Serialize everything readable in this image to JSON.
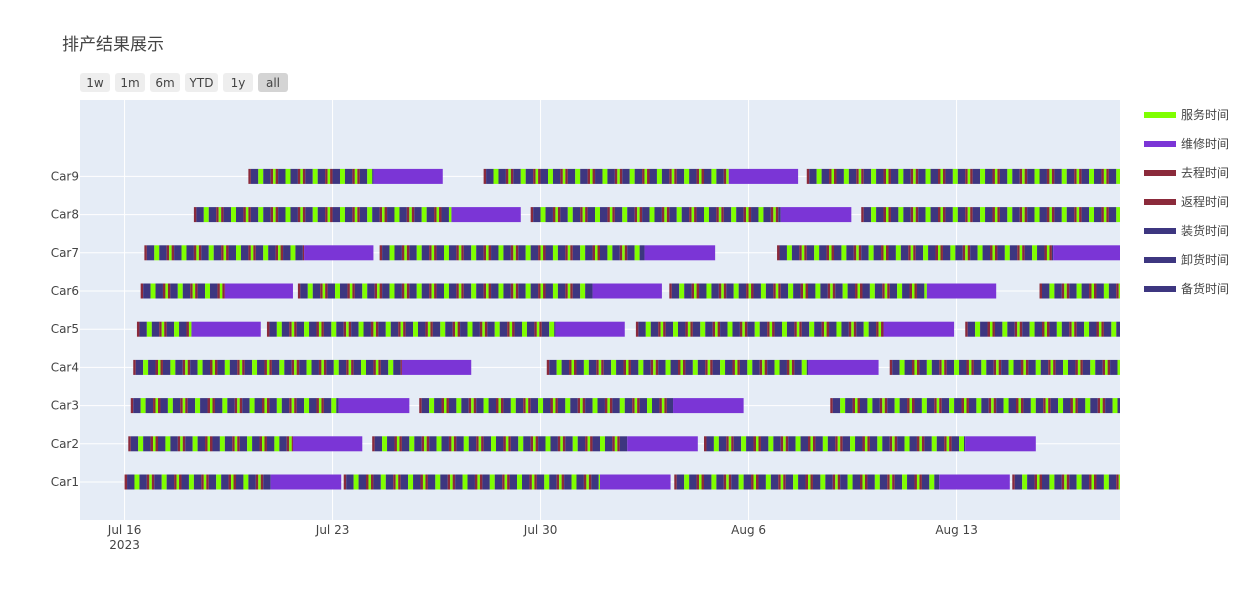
{
  "chart_data": {
    "type": "gantt",
    "title": "排产结果展示",
    "range_selector": {
      "buttons": [
        "1w",
        "1m",
        "6m",
        "YTD",
        "1y",
        "all"
      ],
      "active": "all"
    },
    "x_axis": {
      "type": "date",
      "range": [
        "2023-07-14T12:00",
        "2023-08-18T12:00"
      ],
      "ticks": [
        {
          "date": "2023-07-16",
          "label": "Jul 16",
          "sublabel": "2023"
        },
        {
          "date": "2023-07-23",
          "label": "Jul 23",
          "sublabel": ""
        },
        {
          "date": "2023-07-30",
          "label": "Jul 30",
          "sublabel": ""
        },
        {
          "date": "2023-08-06",
          "label": "Aug 6",
          "sublabel": ""
        },
        {
          "date": "2023-08-13",
          "label": "Aug 13",
          "sublabel": ""
        }
      ]
    },
    "y_axis": {
      "categories": [
        "Car1",
        "Car2",
        "Car3",
        "Car4",
        "Car5",
        "Car6",
        "Car7",
        "Car8",
        "Car9"
      ]
    },
    "legend": {
      "placement": "right",
      "items": [
        {
          "name": "服务时间",
          "color": "#7fff00"
        },
        {
          "name": "维修时间",
          "color": "#7b35d6"
        },
        {
          "name": "去程时间",
          "color": "#8b2a3b"
        },
        {
          "name": "返程时间",
          "color": "#8b2a3b"
        },
        {
          "name": "装货时间",
          "color": "#3d3680"
        },
        {
          "name": "卸货时间",
          "color": "#3d3680"
        },
        {
          "name": "备货时间",
          "color": "#3d3680"
        }
      ]
    },
    "grid": true,
    "cycle_pattern": [
      {
        "type": "去程时间",
        "hours": 2
      },
      {
        "type": "装货时间",
        "hours": 6
      },
      {
        "type": "服务时间",
        "hours": 4
      },
      {
        "type": "卸货时间",
        "hours": 6
      },
      {
        "type": "返程时间",
        "hours": 2
      },
      {
        "type": "服务时间",
        "hours": 2
      }
    ],
    "rows": [
      {
        "car": "Car1",
        "segments": [
          {
            "type": "work",
            "start": "2023-07-16T00:00",
            "end": "2023-07-20T22:00"
          },
          {
            "type": "维修时间",
            "start": "2023-07-20T22:00",
            "end": "2023-07-23T07:00"
          },
          {
            "type": "work",
            "start": "2023-07-23T09:00",
            "end": "2023-08-01T00:00"
          },
          {
            "type": "维修时间",
            "start": "2023-08-01T00:00",
            "end": "2023-08-03T09:00"
          },
          {
            "type": "work",
            "start": "2023-08-03T12:00",
            "end": "2023-08-12T10:00"
          },
          {
            "type": "维修时间",
            "start": "2023-08-12T10:00",
            "end": "2023-08-14T19:00"
          },
          {
            "type": "work",
            "start": "2023-08-14T21:00",
            "end": "2023-08-18T12:00"
          }
        ]
      },
      {
        "car": "Car2",
        "segments": [
          {
            "type": "work",
            "start": "2023-07-16T03:00",
            "end": "2023-07-21T16:00"
          },
          {
            "type": "维修时间",
            "start": "2023-07-21T16:00",
            "end": "2023-07-24T00:00"
          },
          {
            "type": "work",
            "start": "2023-07-24T08:00",
            "end": "2023-08-01T22:00"
          },
          {
            "type": "维修时间",
            "start": "2023-08-01T22:00",
            "end": "2023-08-04T07:00"
          },
          {
            "type": "work",
            "start": "2023-08-04T12:00",
            "end": "2023-08-13T07:00"
          },
          {
            "type": "维修时间",
            "start": "2023-08-13T07:00",
            "end": "2023-08-15T16:00"
          }
        ]
      },
      {
        "car": "Car3",
        "segments": [
          {
            "type": "work",
            "start": "2023-07-16T05:00",
            "end": "2023-07-23T05:00"
          },
          {
            "type": "维修时间",
            "start": "2023-07-23T05:00",
            "end": "2023-07-25T14:00"
          },
          {
            "type": "work",
            "start": "2023-07-25T22:00",
            "end": "2023-08-03T11:00"
          },
          {
            "type": "维修时间",
            "start": "2023-08-03T11:00",
            "end": "2023-08-05T20:00"
          },
          {
            "type": "work",
            "start": "2023-08-08T18:00",
            "end": "2023-08-18T12:00"
          }
        ]
      },
      {
        "car": "Car4",
        "segments": [
          {
            "type": "work",
            "start": "2023-07-16T07:00",
            "end": "2023-07-25T08:00"
          },
          {
            "type": "维修时间",
            "start": "2023-07-25T08:00",
            "end": "2023-07-27T16:00"
          },
          {
            "type": "work",
            "start": "2023-07-30T05:00",
            "end": "2023-08-08T00:00"
          },
          {
            "type": "维修时间",
            "start": "2023-08-08T00:00",
            "end": "2023-08-10T09:00"
          },
          {
            "type": "work",
            "start": "2023-08-10T18:00",
            "end": "2023-08-18T12:00"
          }
        ]
      },
      {
        "car": "Car5",
        "segments": [
          {
            "type": "work",
            "start": "2023-07-16T10:00",
            "end": "2023-07-18T06:00"
          },
          {
            "type": "维修时间",
            "start": "2023-07-18T06:00",
            "end": "2023-07-20T14:00"
          },
          {
            "type": "work",
            "start": "2023-07-20T19:00",
            "end": "2023-07-30T12:00"
          },
          {
            "type": "维修时间",
            "start": "2023-07-30T12:00",
            "end": "2023-08-01T20:00"
          },
          {
            "type": "work",
            "start": "2023-08-02T05:00",
            "end": "2023-08-10T13:00"
          },
          {
            "type": "维修时间",
            "start": "2023-08-10T13:00",
            "end": "2023-08-12T22:00"
          },
          {
            "type": "work",
            "start": "2023-08-13T07:00",
            "end": "2023-08-18T12:00"
          }
        ]
      },
      {
        "car": "Car6",
        "segments": [
          {
            "type": "work",
            "start": "2023-07-16T13:00",
            "end": "2023-07-19T09:00"
          },
          {
            "type": "维修时间",
            "start": "2023-07-19T09:00",
            "end": "2023-07-21T16:00"
          },
          {
            "type": "work",
            "start": "2023-07-21T20:00",
            "end": "2023-07-31T18:00"
          },
          {
            "type": "维修时间",
            "start": "2023-07-31T18:00",
            "end": "2023-08-03T02:00"
          },
          {
            "type": "work",
            "start": "2023-08-03T08:00",
            "end": "2023-08-12T00:00"
          },
          {
            "type": "维修时间",
            "start": "2023-08-12T00:00",
            "end": "2023-08-14T08:00"
          },
          {
            "type": "work",
            "start": "2023-08-15T19:00",
            "end": "2023-08-18T12:00"
          }
        ]
      },
      {
        "car": "Car7",
        "segments": [
          {
            "type": "work",
            "start": "2023-07-16T16:00",
            "end": "2023-07-22T01:00"
          },
          {
            "type": "维修时间",
            "start": "2023-07-22T01:00",
            "end": "2023-07-24T09:00"
          },
          {
            "type": "work",
            "start": "2023-07-24T14:00",
            "end": "2023-08-02T12:00"
          },
          {
            "type": "维修时间",
            "start": "2023-08-02T12:00",
            "end": "2023-08-04T21:00"
          },
          {
            "type": "work",
            "start": "2023-08-06T23:00",
            "end": "2023-08-16T06:00"
          },
          {
            "type": "维修时间",
            "start": "2023-08-16T06:00",
            "end": "2023-08-18T12:00"
          }
        ]
      },
      {
        "car": "Car8",
        "segments": [
          {
            "type": "work",
            "start": "2023-07-18T08:00",
            "end": "2023-07-27T00:00"
          },
          {
            "type": "维修时间",
            "start": "2023-07-27T00:00",
            "end": "2023-07-29T08:00"
          },
          {
            "type": "work",
            "start": "2023-07-29T16:00",
            "end": "2023-08-07T02:00"
          },
          {
            "type": "维修时间",
            "start": "2023-08-07T02:00",
            "end": "2023-08-09T11:00"
          },
          {
            "type": "work",
            "start": "2023-08-09T19:00",
            "end": "2023-08-18T12:00"
          }
        ]
      },
      {
        "car": "Car9",
        "segments": [
          {
            "type": "work",
            "start": "2023-07-20T04:00",
            "end": "2023-07-24T09:00"
          },
          {
            "type": "维修时间",
            "start": "2023-07-24T09:00",
            "end": "2023-07-26T17:00"
          },
          {
            "type": "work",
            "start": "2023-07-28T02:00",
            "end": "2023-08-05T08:00"
          },
          {
            "type": "维修时间",
            "start": "2023-08-05T08:00",
            "end": "2023-08-07T16:00"
          },
          {
            "type": "work",
            "start": "2023-08-07T23:00",
            "end": "2023-08-18T12:00"
          }
        ]
      }
    ]
  }
}
